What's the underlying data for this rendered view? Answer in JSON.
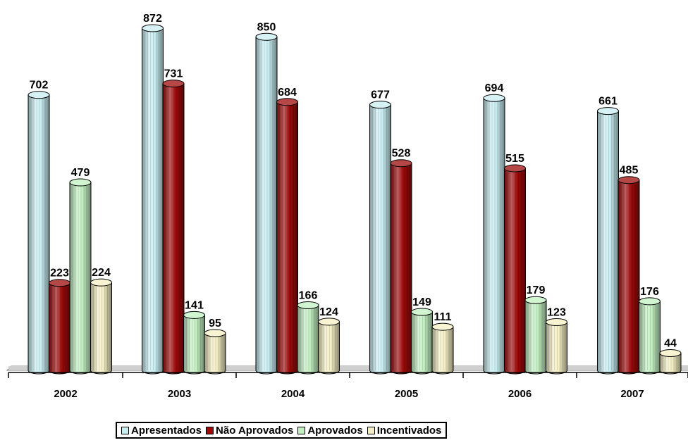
{
  "chart_data": {
    "type": "bar",
    "categories": [
      "2002",
      "2003",
      "2004",
      "2005",
      "2006",
      "2007"
    ],
    "series": [
      {
        "name": "Apresentados",
        "color": "#c8eef2",
        "values": [
          702,
          872,
          850,
          677,
          694,
          661
        ]
      },
      {
        "name": "Não Aprovados",
        "color": "#9e0a0a",
        "values": [
          223,
          731,
          684,
          528,
          515,
          485
        ]
      },
      {
        "name": "Aprovados",
        "color": "#c2f0c2",
        "values": [
          479,
          141,
          166,
          149,
          179,
          176
        ]
      },
      {
        "name": "Incentivados",
        "color": "#f4efc4",
        "values": [
          224,
          95,
          124,
          111,
          123,
          44
        ]
      }
    ],
    "ylim": [
      0,
      900
    ],
    "legend_position": "bottom",
    "grid": false,
    "style": "3d-cylinder"
  }
}
